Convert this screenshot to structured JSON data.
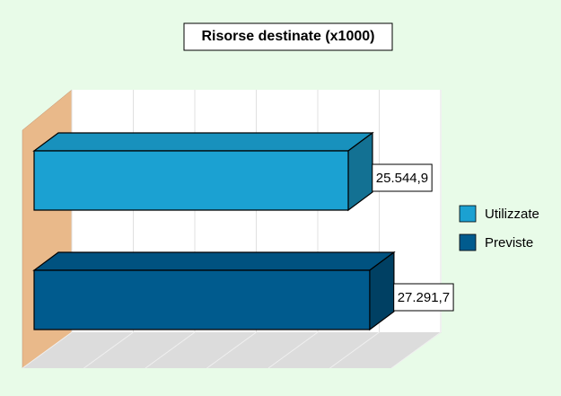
{
  "chart_data": {
    "type": "bar3d_horizontal",
    "title": "Risorse destinate (x1000)",
    "categories": [
      "Utilizzate",
      "Previste"
    ],
    "values": [
      25544.9,
      27291.7
    ],
    "value_labels": [
      "25.544,9",
      "27.291,7"
    ],
    "colors": [
      "#1ba1d2",
      "#005b8e"
    ],
    "xlim": [
      0,
      30000
    ],
    "xticks": [
      0,
      5000,
      10000,
      15000,
      20000,
      25000,
      30000
    ],
    "grid": true,
    "legend": "right"
  }
}
